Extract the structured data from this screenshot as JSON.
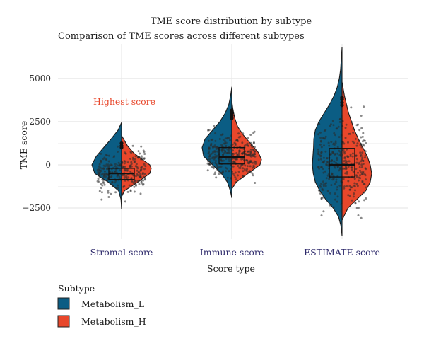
{
  "chart_data": {
    "type": "violin",
    "title": "TME score distribution by subtype",
    "subtitle": "Comparison of TME scores across different subtypes",
    "xlabel": "Score type",
    "ylabel": "TME score",
    "categories": [
      "Stromal score",
      "Immune score",
      "ESTIMATE score"
    ],
    "yticks": [
      -2500,
      0,
      2500,
      5000
    ],
    "ylim": [
      -4300,
      7000
    ],
    "grid": true,
    "legend": {
      "title": "Subtype",
      "placement": "bottom-left"
    },
    "annotation": {
      "text": "Highest score",
      "category": "Stromal score",
      "y": 3700,
      "color": "#e8472b"
    },
    "series": [
      {
        "name": "Metabolism_L",
        "color": "#0b5d84",
        "violins": [
          {
            "category": "Stromal score",
            "min": -2550,
            "max": 2450,
            "median": 0,
            "profile": [
              [
                -2550,
                0
              ],
              [
                -2000,
                0.02
              ],
              [
                -1500,
                0.1
              ],
              [
                -1000,
                0.45
              ],
              [
                -500,
                0.9
              ],
              [
                0,
                1.0
              ],
              [
                500,
                0.85
              ],
              [
                1000,
                0.6
              ],
              [
                1500,
                0.35
              ],
              [
                2000,
                0.12
              ],
              [
                2450,
                0
              ]
            ]
          },
          {
            "category": "Immune score",
            "min": -1900,
            "max": 4500,
            "median": 800,
            "profile": [
              [
                -1900,
                0
              ],
              [
                -1500,
                0.05
              ],
              [
                -1000,
                0.15
              ],
              [
                -500,
                0.35
              ],
              [
                0,
                0.65
              ],
              [
                500,
                0.95
              ],
              [
                1000,
                1.0
              ],
              [
                1500,
                0.9
              ],
              [
                2000,
                0.65
              ],
              [
                2500,
                0.4
              ],
              [
                3000,
                0.22
              ],
              [
                3500,
                0.1
              ],
              [
                4000,
                0.04
              ],
              [
                4500,
                0
              ]
            ]
          },
          {
            "category": "ESTIMATE score",
            "min": -4100,
            "max": 6800,
            "median": 1500,
            "profile": [
              [
                -4100,
                0
              ],
              [
                -3500,
                0.04
              ],
              [
                -3000,
                0.12
              ],
              [
                -2500,
                0.3
              ],
              [
                -2000,
                0.55
              ],
              [
                -1500,
                0.75
              ],
              [
                -1000,
                0.9
              ],
              [
                -500,
                0.97
              ],
              [
                0,
                1.0
              ],
              [
                500,
                0.98
              ],
              [
                1000,
                0.96
              ],
              [
                1500,
                0.95
              ],
              [
                2000,
                0.9
              ],
              [
                2500,
                0.78
              ],
              [
                3000,
                0.6
              ],
              [
                3500,
                0.42
              ],
              [
                4000,
                0.27
              ],
              [
                4500,
                0.16
              ],
              [
                5000,
                0.09
              ],
              [
                5500,
                0.05
              ],
              [
                6000,
                0.03
              ],
              [
                6800,
                0
              ]
            ]
          }
        ]
      },
      {
        "name": "Metabolism_H",
        "color": "#e8472b",
        "violins": [
          {
            "category": "Stromal score",
            "min": -1850,
            "max": 1700,
            "median": -600,
            "profile": [
              [
                -1850,
                0
              ],
              [
                -1500,
                0.1
              ],
              [
                -1000,
                0.55
              ],
              [
                -500,
                0.95
              ],
              [
                -200,
                1.0
              ],
              [
                0,
                0.95
              ],
              [
                300,
                0.7
              ],
              [
                700,
                0.4
              ],
              [
                1100,
                0.2
              ],
              [
                1400,
                0.1
              ],
              [
                1700,
                0
              ]
            ]
          },
          {
            "category": "Immune score",
            "min": -1400,
            "max": 3700,
            "median": 500,
            "profile": [
              [
                -1400,
                0
              ],
              [
                -1000,
                0.15
              ],
              [
                -500,
                0.55
              ],
              [
                0,
                0.95
              ],
              [
                300,
                1.0
              ],
              [
                700,
                0.9
              ],
              [
                1200,
                0.65
              ],
              [
                1700,
                0.4
              ],
              [
                2200,
                0.2
              ],
              [
                2700,
                0.1
              ],
              [
                3200,
                0.04
              ],
              [
                3700,
                0
              ]
            ]
          },
          {
            "category": "ESTIMATE score",
            "min": -3200,
            "max": 4800,
            "median": 0,
            "profile": [
              [
                -3200,
                0
              ],
              [
                -2500,
                0.2
              ],
              [
                -2000,
                0.5
              ],
              [
                -1500,
                0.8
              ],
              [
                -1000,
                0.95
              ],
              [
                -500,
                1.0
              ],
              [
                0,
                0.95
              ],
              [
                500,
                0.85
              ],
              [
                1000,
                0.7
              ],
              [
                1500,
                0.55
              ],
              [
                2000,
                0.42
              ],
              [
                2500,
                0.32
              ],
              [
                3000,
                0.22
              ],
              [
                3500,
                0.15
              ],
              [
                4000,
                0.08
              ],
              [
                4800,
                0
              ]
            ]
          }
        ]
      }
    ],
    "boxplots": [
      {
        "category": "Stromal score",
        "q1": -850,
        "median": -500,
        "q3": -200,
        "whisker_low": -1800,
        "whisker_high": 900,
        "outliers": [
          1000,
          1100,
          1250
        ]
      },
      {
        "category": "Immune score",
        "q1": 50,
        "median": 450,
        "q3": 1000,
        "whisker_low": -1100,
        "whisker_high": 2500,
        "outliers": [
          2700,
          2850,
          3000,
          3150
        ]
      },
      {
        "category": "ESTIMATE score",
        "q1": -700,
        "median": 0,
        "q3": 950,
        "whisker_low": -2300,
        "whisker_high": 2900,
        "outliers": [
          3450,
          3600,
          3800,
          3900
        ]
      }
    ],
    "jitter_points": [
      {
        "category": "Stromal score",
        "count": 260,
        "spread": 600,
        "mean": -450,
        "sd": 550
      },
      {
        "category": "Immune score",
        "count": 300,
        "spread": 650,
        "mean": 500,
        "sd": 650
      },
      {
        "category": "ESTIMATE score",
        "count": 320,
        "spread": 700,
        "mean": 100,
        "sd": 1250
      }
    ]
  }
}
